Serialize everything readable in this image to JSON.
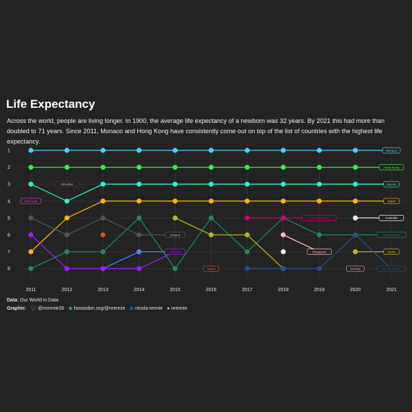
{
  "title": "Life Expectancy",
  "subtitle": "Across the world, people are living longer. In 1900, the average life expectancy of a newborn was 32 years. By 2021 this had more than doubled to 71 years. Since 2011, Monaco and Hong Kong have consistently come out on top of the list of countries with the highest life expectancy.",
  "caption": {
    "data_label": "Data",
    "data_value": ": Our World in Data",
    "graphic_label": "Graphic",
    "twitter": "@nrennie35",
    "mastodon": "fosstodon.org/@nrennie",
    "linkedin": "nicola-rennie",
    "github": "nrennie",
    "icons": [
      "twitter-icon",
      "mastodon-icon",
      "linkedin-icon",
      "github-icon"
    ]
  },
  "colors": {
    "background": "#232323",
    "grid": "#3a3a3a",
    "text": "#ffffff"
  },
  "chart_data": {
    "type": "line",
    "subtype": "bump",
    "x": [
      2011,
      2012,
      2013,
      2014,
      2015,
      2016,
      2017,
      2018,
      2019,
      2020,
      2021
    ],
    "y_ticks": [
      1,
      2,
      3,
      4,
      5,
      6,
      7,
      8
    ],
    "ylim": [
      8,
      1
    ],
    "y_reversed": true,
    "grid": true,
    "series": [
      {
        "name": "Monaco",
        "color": "#4fd1ff",
        "ranks": [
          1,
          1,
          1,
          1,
          1,
          1,
          1,
          1,
          1,
          1,
          1
        ],
        "label_at": 2021
      },
      {
        "name": "Hong Kong",
        "color": "#33ee44",
        "ranks": [
          2,
          2,
          2,
          2,
          2,
          2,
          2,
          2,
          2,
          2,
          2
        ],
        "label_at": 2021
      },
      {
        "name": "Macao",
        "color": "#33f0c8",
        "ranks": [
          3,
          4,
          3,
          3,
          3,
          3,
          3,
          3,
          3,
          3,
          3
        ],
        "label_at": 2021
      },
      {
        "name": "Japan",
        "color": "#ffb310",
        "ranks": [
          7,
          5,
          4,
          4,
          4,
          4,
          4,
          4,
          4,
          4,
          4
        ],
        "label_at": 2021
      },
      {
        "name": "Australia",
        "color": "#f0f0f0",
        "ranks": [
          null,
          null,
          null,
          null,
          null,
          null,
          null,
          7,
          null,
          5,
          5
        ],
        "label_at": 2021
      },
      {
        "name": "Switzerland",
        "color": "#1e8a5e",
        "ranks": [
          8,
          7,
          7,
          5,
          8,
          5,
          7,
          5,
          6,
          6,
          6
        ],
        "label_at": 2021
      },
      {
        "name": "Malta",
        "color": "#b5b820",
        "ranks": [
          null,
          null,
          null,
          null,
          5,
          6,
          6,
          8,
          null,
          7,
          7
        ],
        "label_at": 2021
      },
      {
        "name": "South Korea",
        "color": "#2a4e8f",
        "ranks": [
          null,
          null,
          null,
          null,
          null,
          null,
          8,
          8,
          8,
          6,
          8
        ],
        "label_at": 2021
      },
      {
        "name": "Norway",
        "color": "#d6a6c8",
        "ranks": [
          null,
          null,
          null,
          null,
          null,
          null,
          null,
          null,
          null,
          8,
          null
        ],
        "label_at": 2020
      },
      {
        "name": "Singapore",
        "color": "#ffb6b6",
        "ranks": [
          null,
          null,
          null,
          null,
          null,
          null,
          null,
          6,
          7,
          null,
          null
        ],
        "label_at": 2019
      },
      {
        "name": "Liechtenstein",
        "color": "#d6007a",
        "ranks": [
          null,
          null,
          null,
          null,
          null,
          null,
          5,
          5,
          5,
          null,
          null
        ],
        "label_at": 2019
      },
      {
        "name": "Italy",
        "color": "#3a8fff",
        "ranks": [
          null,
          null,
          8,
          7,
          7,
          null,
          null,
          null,
          null,
          null,
          null
        ],
        "label_at": 2016
      },
      {
        "name": "Spain",
        "color": "#e0501c",
        "ranks": [
          null,
          null,
          6,
          null,
          null,
          8,
          null,
          null,
          null,
          null,
          null
        ],
        "label_at": 2016
      },
      {
        "name": "Iceland",
        "color": "#555555",
        "ranks": [
          5,
          6,
          5,
          6,
          6,
          null,
          null,
          null,
          null,
          null,
          null
        ],
        "label_at": 2015
      },
      {
        "name": "Andorra",
        "color": "#a020f0",
        "ranks": [
          6,
          8,
          8,
          8,
          7,
          null,
          null,
          null,
          null,
          null,
          null
        ],
        "label_at": 2015
      },
      {
        "name": "Gibraltar",
        "color": "#8b1a1a",
        "ranks": [
          null,
          3,
          null,
          null,
          null,
          null,
          null,
          null,
          null,
          null,
          null
        ],
        "label_at": 2012
      },
      {
        "name": "Bermuda",
        "color": "#ff33dd",
        "ranks": [
          4,
          null,
          null,
          null,
          null,
          null,
          null,
          null,
          null,
          null,
          null
        ],
        "label_at": 2011
      }
    ]
  }
}
